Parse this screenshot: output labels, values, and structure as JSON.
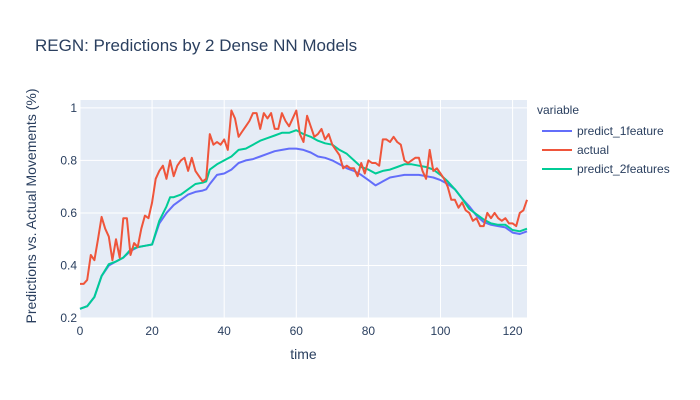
{
  "chart_data": {
    "type": "line",
    "title": "REGN: Predictions by 2 Dense NN Models",
    "xlabel": "time",
    "ylabel": "Predictions vs. Actual Movements (%)",
    "xlim": [
      0,
      124
    ],
    "ylim": [
      0.2,
      1.03
    ],
    "xticks": [
      0,
      20,
      40,
      60,
      80,
      100,
      120
    ],
    "yticks": [
      0.2,
      0.4,
      0.6,
      0.8,
      1
    ],
    "grid": true,
    "legend_title": "variable",
    "legend_position": "right",
    "colors": {
      "plot_bg": "#e5ecf6",
      "grid": "#ffffff"
    },
    "series": [
      {
        "name": "predict_1feature",
        "color": "#636efa",
        "x": [
          0,
          2,
          4,
          6,
          8,
          10,
          12,
          14,
          16,
          18,
          20,
          22,
          24,
          26,
          28,
          30,
          32,
          34,
          35,
          36,
          38,
          40,
          42,
          44,
          46,
          48,
          50,
          52,
          54,
          56,
          58,
          60,
          62,
          64,
          66,
          68,
          70,
          72,
          74,
          76,
          78,
          80,
          82,
          84,
          86,
          88,
          90,
          92,
          94,
          96,
          98,
          100,
          102,
          104,
          106,
          108,
          110,
          112,
          114,
          116,
          118,
          120,
          122,
          124
        ],
        "y": [
          0.235,
          0.245,
          0.28,
          0.36,
          0.4,
          0.415,
          0.43,
          0.455,
          0.47,
          0.475,
          0.48,
          0.56,
          0.6,
          0.63,
          0.65,
          0.67,
          0.68,
          0.685,
          0.69,
          0.71,
          0.745,
          0.75,
          0.765,
          0.79,
          0.8,
          0.805,
          0.815,
          0.825,
          0.835,
          0.84,
          0.845,
          0.845,
          0.84,
          0.83,
          0.815,
          0.81,
          0.8,
          0.785,
          0.77,
          0.76,
          0.745,
          0.725,
          0.705,
          0.72,
          0.735,
          0.74,
          0.745,
          0.745,
          0.745,
          0.74,
          0.735,
          0.725,
          0.71,
          0.69,
          0.655,
          0.625,
          0.59,
          0.565,
          0.555,
          0.55,
          0.545,
          0.525,
          0.52,
          0.53
        ]
      },
      {
        "name": "actual",
        "color": "#ef553b",
        "x": [
          0,
          1,
          2,
          3,
          4,
          5,
          6,
          7,
          8,
          9,
          10,
          11,
          12,
          13,
          14,
          15,
          16,
          17,
          18,
          19,
          20,
          21,
          22,
          23,
          24,
          25,
          26,
          27,
          28,
          29,
          30,
          31,
          32,
          33,
          34,
          35,
          36,
          37,
          38,
          39,
          40,
          41,
          42,
          43,
          44,
          45,
          46,
          47,
          48,
          49,
          50,
          51,
          52,
          53,
          54,
          55,
          56,
          57,
          58,
          59,
          60,
          61,
          62,
          63,
          64,
          65,
          66,
          67,
          68,
          69,
          70,
          71,
          72,
          73,
          74,
          75,
          76,
          77,
          78,
          79,
          80,
          81,
          82,
          83,
          84,
          85,
          86,
          87,
          88,
          89,
          90,
          91,
          92,
          93,
          94,
          95,
          96,
          97,
          98,
          99,
          100,
          101,
          102,
          103,
          104,
          105,
          106,
          107,
          108,
          109,
          110,
          111,
          112,
          113,
          114,
          115,
          116,
          117,
          118,
          119,
          120,
          121,
          122,
          123,
          124
        ],
        "y": [
          0.33,
          0.33,
          0.345,
          0.44,
          0.42,
          0.5,
          0.585,
          0.54,
          0.51,
          0.42,
          0.5,
          0.43,
          0.58,
          0.58,
          0.44,
          0.485,
          0.47,
          0.54,
          0.59,
          0.58,
          0.64,
          0.73,
          0.76,
          0.78,
          0.73,
          0.8,
          0.74,
          0.78,
          0.8,
          0.81,
          0.76,
          0.81,
          0.76,
          0.74,
          0.72,
          0.73,
          0.9,
          0.86,
          0.87,
          0.86,
          0.88,
          0.84,
          0.99,
          0.96,
          0.89,
          0.91,
          0.93,
          0.95,
          0.98,
          0.98,
          0.92,
          0.98,
          0.96,
          0.98,
          0.92,
          0.92,
          0.98,
          0.95,
          0.93,
          0.96,
          0.99,
          0.9,
          0.87,
          0.97,
          0.93,
          0.89,
          0.9,
          0.92,
          0.88,
          0.9,
          0.86,
          0.84,
          0.82,
          0.77,
          0.78,
          0.77,
          0.77,
          0.74,
          0.79,
          0.75,
          0.8,
          0.79,
          0.79,
          0.78,
          0.88,
          0.88,
          0.87,
          0.89,
          0.87,
          0.86,
          0.8,
          0.79,
          0.8,
          0.81,
          0.81,
          0.76,
          0.73,
          0.84,
          0.76,
          0.77,
          0.75,
          0.73,
          0.7,
          0.65,
          0.65,
          0.62,
          0.64,
          0.61,
          0.6,
          0.57,
          0.58,
          0.55,
          0.55,
          0.6,
          0.58,
          0.6,
          0.58,
          0.57,
          0.58,
          0.56,
          0.56,
          0.55,
          0.6,
          0.61,
          0.65
        ]
      },
      {
        "name": "predict_2features",
        "color": "#00cc96",
        "x": [
          0,
          2,
          4,
          6,
          8,
          10,
          12,
          14,
          16,
          18,
          20,
          22,
          24,
          25,
          26,
          28,
          30,
          32,
          34,
          35,
          36,
          38,
          40,
          42,
          44,
          46,
          48,
          50,
          52,
          54,
          56,
          58,
          60,
          62,
          64,
          66,
          68,
          70,
          72,
          74,
          76,
          78,
          80,
          82,
          84,
          86,
          88,
          90,
          92,
          94,
          96,
          98,
          100,
          102,
          104,
          106,
          108,
          110,
          112,
          114,
          116,
          118,
          120,
          122,
          124
        ],
        "y": [
          0.235,
          0.245,
          0.28,
          0.36,
          0.405,
          0.415,
          0.43,
          0.46,
          0.47,
          0.475,
          0.48,
          0.57,
          0.625,
          0.66,
          0.66,
          0.67,
          0.69,
          0.71,
          0.715,
          0.72,
          0.765,
          0.785,
          0.8,
          0.815,
          0.84,
          0.845,
          0.86,
          0.875,
          0.885,
          0.895,
          0.905,
          0.905,
          0.915,
          0.9,
          0.89,
          0.875,
          0.865,
          0.86,
          0.84,
          0.825,
          0.8,
          0.775,
          0.765,
          0.75,
          0.76,
          0.765,
          0.775,
          0.785,
          0.785,
          0.78,
          0.775,
          0.765,
          0.745,
          0.72,
          0.69,
          0.655,
          0.615,
          0.595,
          0.575,
          0.56,
          0.555,
          0.555,
          0.535,
          0.53,
          0.54
        ]
      }
    ]
  }
}
